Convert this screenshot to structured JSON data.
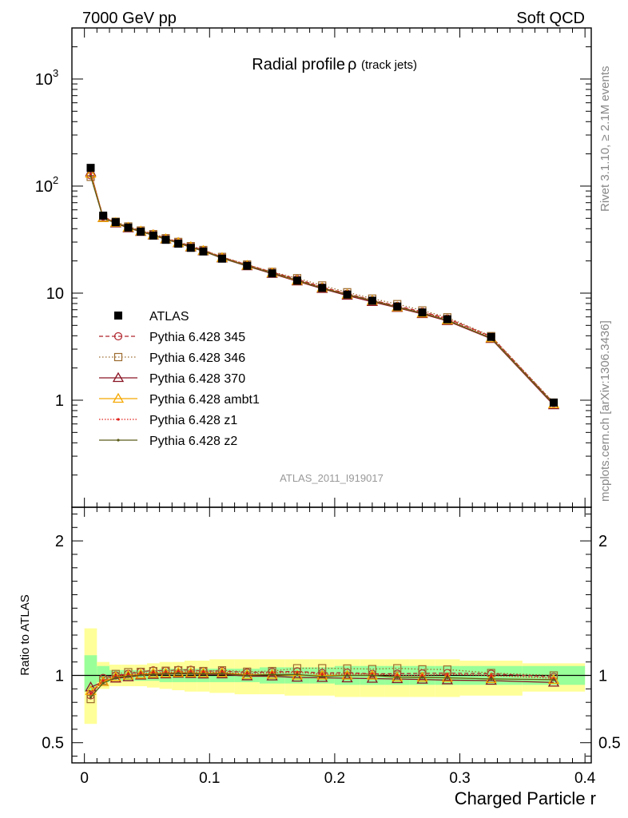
{
  "header": {
    "left": "7000 GeV pp",
    "right": "Soft QCD"
  },
  "side_labels": {
    "rivet": "Rivet 3.1.10, ≥ 2.1M events",
    "mcplots": "mcplots.cern.ch [arXiv:1306.3436]"
  },
  "chart_data": {
    "type": "line",
    "title": "Radial profile",
    "title_symbol": "ρ",
    "title_suffix": "(track jets)",
    "analysis_label": "ATLAS_2011_I919017",
    "xlabel": "Charged Particle r",
    "x_ticks": [
      "0",
      "0.1",
      "0.2",
      "0.3",
      "0.4"
    ],
    "xlim": [
      -0.01,
      0.405
    ],
    "main": {
      "yscale": "log",
      "ylim": [
        0.1,
        3000
      ],
      "y_ticks": [
        {
          "value": 1,
          "label": "1"
        },
        {
          "value": 10,
          "label": "10"
        },
        {
          "value": 100,
          "label": "10",
          "exp": "2"
        },
        {
          "value": 1000,
          "label": "10",
          "exp": "3"
        }
      ]
    },
    "ratio": {
      "ylabel": "Ratio to ATLAS",
      "ylim": [
        0.35,
        2.25
      ],
      "y_ticks": [
        "0.5",
        "1",
        "2"
      ],
      "y_tick_values": [
        0.5,
        1,
        2
      ]
    },
    "x": [
      0.005,
      0.015,
      0.025,
      0.035,
      0.045,
      0.055,
      0.065,
      0.075,
      0.085,
      0.095,
      0.11,
      0.13,
      0.15,
      0.17,
      0.19,
      0.21,
      0.23,
      0.25,
      0.27,
      0.29,
      0.325,
      0.375
    ],
    "bins": [
      [
        0,
        0.01
      ],
      [
        0.01,
        0.02
      ],
      [
        0.02,
        0.03
      ],
      [
        0.03,
        0.04
      ],
      [
        0.04,
        0.05
      ],
      [
        0.05,
        0.06
      ],
      [
        0.06,
        0.07
      ],
      [
        0.07,
        0.08
      ],
      [
        0.08,
        0.09
      ],
      [
        0.09,
        0.1
      ],
      [
        0.1,
        0.12
      ],
      [
        0.12,
        0.14
      ],
      [
        0.14,
        0.16
      ],
      [
        0.16,
        0.18
      ],
      [
        0.18,
        0.2
      ],
      [
        0.2,
        0.22
      ],
      [
        0.22,
        0.24
      ],
      [
        0.24,
        0.26
      ],
      [
        0.26,
        0.28
      ],
      [
        0.28,
        0.3
      ],
      [
        0.3,
        0.35
      ],
      [
        0.35,
        0.4
      ]
    ],
    "data": {
      "name": "ATLAS",
      "values": [
        148,
        53,
        46,
        41,
        37.5,
        34.5,
        31.5,
        29,
        26.5,
        24.5,
        21,
        18,
        15.3,
        13.1,
        11.2,
        9.7,
        8.5,
        7.5,
        6.6,
        5.7,
        3.9,
        0.95
      ]
    },
    "band_inner": [
      [
        0.88,
        1.15
      ],
      [
        0.95,
        1.07
      ],
      [
        0.96,
        1.04
      ],
      [
        0.96,
        1.04
      ],
      [
        0.96,
        1.04
      ],
      [
        0.96,
        1.04
      ],
      [
        0.95,
        1.05
      ],
      [
        0.95,
        1.05
      ],
      [
        0.95,
        1.05
      ],
      [
        0.95,
        1.05
      ],
      [
        0.95,
        1.05
      ],
      [
        0.95,
        1.05
      ],
      [
        0.94,
        1.06
      ],
      [
        0.94,
        1.06
      ],
      [
        0.94,
        1.06
      ],
      [
        0.93,
        1.07
      ],
      [
        0.93,
        1.07
      ],
      [
        0.93,
        1.07
      ],
      [
        0.93,
        1.07
      ],
      [
        0.93,
        1.07
      ],
      [
        0.93,
        1.07
      ],
      [
        0.93,
        1.07
      ]
    ],
    "band_outer": [
      [
        0.64,
        1.35
      ],
      [
        0.9,
        1.1
      ],
      [
        0.92,
        1.08
      ],
      [
        0.92,
        1.08
      ],
      [
        0.92,
        1.08
      ],
      [
        0.91,
        1.09
      ],
      [
        0.9,
        1.1
      ],
      [
        0.89,
        1.1
      ],
      [
        0.88,
        1.11
      ],
      [
        0.88,
        1.11
      ],
      [
        0.87,
        1.12
      ],
      [
        0.86,
        1.12
      ],
      [
        0.86,
        1.12
      ],
      [
        0.85,
        1.12
      ],
      [
        0.85,
        1.12
      ],
      [
        0.84,
        1.12
      ],
      [
        0.84,
        1.12
      ],
      [
        0.84,
        1.12
      ],
      [
        0.84,
        1.12
      ],
      [
        0.84,
        1.12
      ],
      [
        0.85,
        1.11
      ],
      [
        0.88,
        1.09
      ]
    ],
    "series": [
      {
        "name": "Pythia 6.428 345",
        "color": "#b0262e",
        "dash": "5,3",
        "marker": "circle",
        "values": [
          126,
          52,
          46,
          41.5,
          38.5,
          35.8,
          32.6,
          30.2,
          27.6,
          25.3,
          21.7,
          18.4,
          15.7,
          13.5,
          11.4,
          9.9,
          8.6,
          7.6,
          6.7,
          5.8,
          3.95,
          0.94
        ]
      },
      {
        "name": "Pythia 6.428 346",
        "color": "#9c6b2e",
        "dash": "1.5,2.5",
        "marker": "square",
        "values": [
          122,
          51,
          46.5,
          42,
          38.5,
          35.6,
          32.6,
          30.1,
          27.5,
          25.3,
          21.8,
          18.5,
          15.8,
          13.8,
          11.8,
          10.2,
          8.9,
          7.9,
          6.9,
          5.95,
          3.97,
          0.95
        ]
      },
      {
        "name": "Pythia 6.428 370",
        "color": "#8a1524",
        "dash": "",
        "marker": "triangle",
        "values": [
          135,
          50.5,
          45,
          40.5,
          37.5,
          34.7,
          31.8,
          29.4,
          26.8,
          24.7,
          21.2,
          17.9,
          15.2,
          12.9,
          11.0,
          9.5,
          8.3,
          7.3,
          6.4,
          5.5,
          3.75,
          0.9
        ]
      },
      {
        "name": "Pythia 6.428 ambt1",
        "color": "#f5a800",
        "dash": "",
        "marker": "triangle",
        "values": [
          131,
          50.5,
          45.5,
          41,
          37.8,
          35.0,
          32.0,
          29.6,
          27.0,
          24.9,
          21.4,
          18.1,
          15.4,
          13.1,
          11.2,
          9.7,
          8.5,
          7.4,
          6.5,
          5.6,
          3.8,
          0.92
        ]
      },
      {
        "name": "Pythia 6.428 z1",
        "color": "#e0201b",
        "dash": "1.5,2",
        "marker": "dot",
        "values": [
          128,
          51,
          45.8,
          41.2,
          38.0,
          35.2,
          32.2,
          29.8,
          27.2,
          25.1,
          21.5,
          18.2,
          15.6,
          13.4,
          11.3,
          9.8,
          8.6,
          7.5,
          6.6,
          5.75,
          3.9,
          0.93
        ]
      },
      {
        "name": "Pythia 6.428 z2",
        "color": "#5c5c1a",
        "dash": "",
        "marker": "dot",
        "values": [
          124,
          50,
          45.3,
          40.8,
          37.6,
          34.8,
          31.9,
          29.5,
          26.9,
          24.8,
          21.3,
          18.0,
          15.4,
          13.2,
          11.1,
          9.7,
          8.5,
          7.4,
          6.5,
          5.6,
          3.8,
          0.92
        ]
      }
    ]
  },
  "colors": {
    "band_inner": "#99ff99",
    "band_outer": "#ffff99",
    "data": "#000000"
  }
}
